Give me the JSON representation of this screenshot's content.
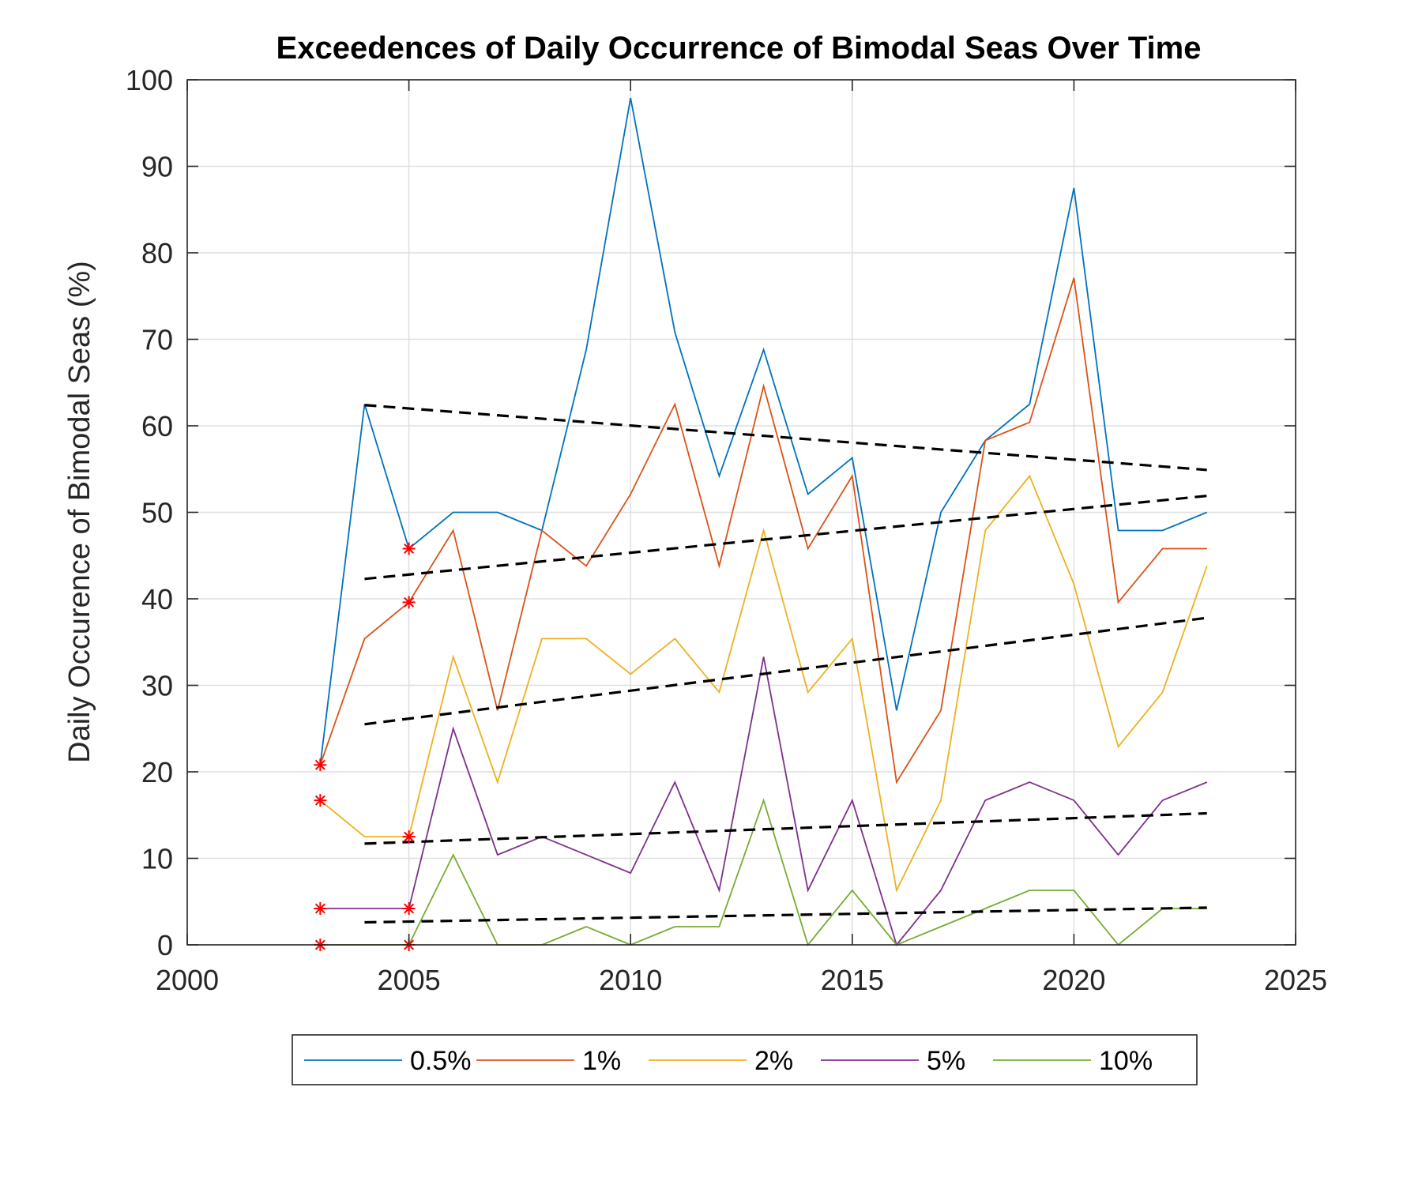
{
  "chart_data": {
    "type": "line",
    "title": "Exceedences of Daily Occurrence of Bimodal Seas Over Time",
    "xlabel": "",
    "ylabel": "Daily Occurence of Bimodal Seas (%)",
    "xlim": [
      2000,
      2025
    ],
    "ylim": [
      0,
      100
    ],
    "xticks": [
      "2000",
      "2005",
      "2010",
      "2015",
      "2020",
      "2025"
    ],
    "yticks": [
      "0",
      "10",
      "20",
      "30",
      "40",
      "50",
      "60",
      "70",
      "80",
      "90",
      "100"
    ],
    "grid": true,
    "legend_position": "bottom, outside, horizontal",
    "x": [
      2003,
      2004,
      2005,
      2006,
      2007,
      2008,
      2009,
      2010,
      2011,
      2012,
      2013,
      2014,
      2015,
      2016,
      2017,
      2018,
      2019,
      2020,
      2021,
      2022,
      2023
    ],
    "series": [
      {
        "name": "0.5%",
        "color": "#0072BD",
        "values": [
          20.8,
          62.5,
          45.8,
          50.0,
          50.0,
          47.9,
          68.8,
          97.9,
          70.8,
          54.2,
          68.8,
          52.1,
          56.3,
          27.1,
          50.0,
          58.3,
          62.5,
          87.5,
          47.9,
          47.9,
          50.0
        ]
      },
      {
        "name": "1%",
        "color": "#D95319",
        "values": [
          20.8,
          35.4,
          39.6,
          47.9,
          27.1,
          47.9,
          43.8,
          52.1,
          62.5,
          43.8,
          64.6,
          45.8,
          54.2,
          18.8,
          27.1,
          58.3,
          60.4,
          77.1,
          39.6,
          45.8,
          45.8
        ]
      },
      {
        "name": "2%",
        "color": "#EDB120",
        "values": [
          16.7,
          12.5,
          12.5,
          33.3,
          18.8,
          35.4,
          35.4,
          31.3,
          35.4,
          29.2,
          47.9,
          29.2,
          35.4,
          6.3,
          16.7,
          47.9,
          54.2,
          41.7,
          22.9,
          29.2,
          43.8
        ]
      },
      {
        "name": "5%",
        "color": "#7E2F8E",
        "values": [
          4.2,
          4.2,
          4.2,
          25.0,
          10.4,
          12.5,
          10.4,
          8.3,
          18.8,
          6.3,
          33.3,
          6.3,
          16.7,
          0.0,
          6.3,
          16.7,
          18.8,
          16.7,
          10.4,
          16.7,
          18.8
        ]
      },
      {
        "name": "10%",
        "color": "#77AC30",
        "values": [
          0.0,
          0.0,
          0.0,
          10.4,
          0.0,
          0.0,
          2.1,
          0.0,
          2.1,
          2.1,
          16.7,
          0.0,
          6.3,
          0.0,
          2.1,
          4.2,
          6.3,
          6.3,
          0.0,
          4.2,
          4.2
        ]
      }
    ],
    "trend_lines": [
      {
        "x": [
          2004,
          2023
        ],
        "y": [
          62.4,
          54.9
        ]
      },
      {
        "x": [
          2004,
          2023
        ],
        "y": [
          42.3,
          51.9
        ]
      },
      {
        "x": [
          2004,
          2023
        ],
        "y": [
          25.5,
          37.8
        ]
      },
      {
        "x": [
          2004,
          2023
        ],
        "y": [
          11.7,
          15.2
        ]
      },
      {
        "x": [
          2004,
          2023
        ],
        "y": [
          2.6,
          4.3
        ]
      }
    ],
    "highlight_markers": [
      {
        "x": 2003,
        "y": 20.8
      },
      {
        "x": 2003,
        "y": 16.7
      },
      {
        "x": 2003,
        "y": 4.2
      },
      {
        "x": 2003,
        "y": 0.0
      },
      {
        "x": 2005,
        "y": 45.8
      },
      {
        "x": 2005,
        "y": 39.6
      },
      {
        "x": 2005,
        "y": 12.5
      },
      {
        "x": 2005,
        "y": 4.2
      },
      {
        "x": 2005,
        "y": 0.0
      }
    ],
    "trend_color": "#000000",
    "marker_color": "#FF0000",
    "axis_color": "#262626",
    "grid_color": "#DFDFDF"
  }
}
